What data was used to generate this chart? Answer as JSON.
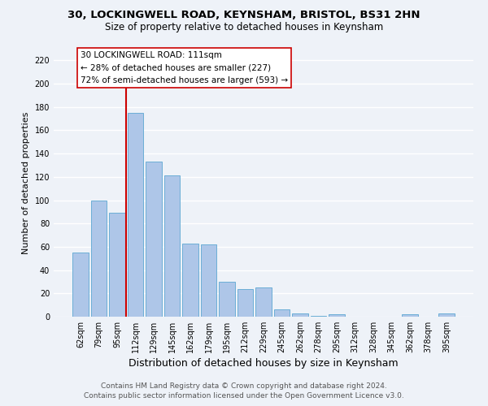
{
  "title": "30, LOCKINGWELL ROAD, KEYNSHAM, BRISTOL, BS31 2HN",
  "subtitle": "Size of property relative to detached houses in Keynsham",
  "xlabel": "Distribution of detached houses by size in Keynsham",
  "ylabel": "Number of detached properties",
  "bar_labels": [
    "62sqm",
    "79sqm",
    "95sqm",
    "112sqm",
    "129sqm",
    "145sqm",
    "162sqm",
    "179sqm",
    "195sqm",
    "212sqm",
    "229sqm",
    "245sqm",
    "262sqm",
    "278sqm",
    "295sqm",
    "312sqm",
    "328sqm",
    "345sqm",
    "362sqm",
    "378sqm",
    "395sqm"
  ],
  "bar_values": [
    55,
    100,
    89,
    175,
    133,
    121,
    63,
    62,
    30,
    24,
    25,
    6,
    3,
    1,
    2,
    0,
    0,
    0,
    2,
    0,
    3
  ],
  "bar_color": "#aec6e8",
  "bar_edge_color": "#6baed6",
  "vline_color": "#cc0000",
  "vline_position": 2.5,
  "annotation_line1": "30 LOCKINGWELL ROAD: 111sqm",
  "annotation_line2": "← 28% of detached houses are smaller (227)",
  "annotation_line3": "72% of semi-detached houses are larger (593) →",
  "annotation_edge_color": "#cc0000",
  "ylim": [
    0,
    230
  ],
  "yticks": [
    0,
    20,
    40,
    60,
    80,
    100,
    120,
    140,
    160,
    180,
    200,
    220
  ],
  "footer_line1": "Contains HM Land Registry data © Crown copyright and database right 2024.",
  "footer_line2": "Contains public sector information licensed under the Open Government Licence v3.0.",
  "bg_color": "#eef2f8",
  "grid_color": "#ffffff",
  "title_fontsize": 9.5,
  "subtitle_fontsize": 8.5,
  "xlabel_fontsize": 9,
  "ylabel_fontsize": 8,
  "tick_fontsize": 7,
  "footer_fontsize": 6.5,
  "annotation_fontsize": 7.5
}
